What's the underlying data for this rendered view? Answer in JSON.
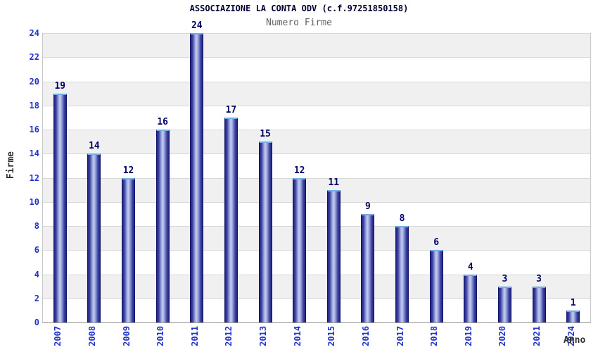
{
  "title": "ASSOCIAZIONE LA CONTA ODV (c.f.97251850158)",
  "subtitle": "Numero Firme",
  "colors": {
    "title": "#000033",
    "subtitle": "#606060",
    "tick_labels": "#2233cc",
    "value_labels": "#000066",
    "axis_labels": "#303030",
    "bar_edge": "#23237f",
    "bar_center": "#c6cdf0",
    "bar_outline": "#12126b",
    "bar_top_highlight": "#74aee8",
    "stripe": "#f0f0f0",
    "gridline": "#d8d8d8"
  },
  "chart_data": {
    "type": "bar",
    "title": "ASSOCIAZIONE LA CONTA ODV (c.f.97251850158)",
    "subtitle": "Numero Firme",
    "xlabel": "Anno",
    "ylabel": "Firme",
    "categories": [
      "2007",
      "2008",
      "2009",
      "2010",
      "2011",
      "2012",
      "2013",
      "2014",
      "2015",
      "2016",
      "2017",
      "2018",
      "2019",
      "2020",
      "2021",
      "2024"
    ],
    "values": [
      19,
      14,
      12,
      16,
      24,
      17,
      15,
      12,
      11,
      9,
      8,
      6,
      4,
      3,
      3,
      1
    ],
    "ylim": [
      0,
      24
    ],
    "ytick_step": 2,
    "grid": true,
    "background_bands": "alternating-gray-white",
    "bar_labels_shown": true,
    "legend": "none"
  }
}
